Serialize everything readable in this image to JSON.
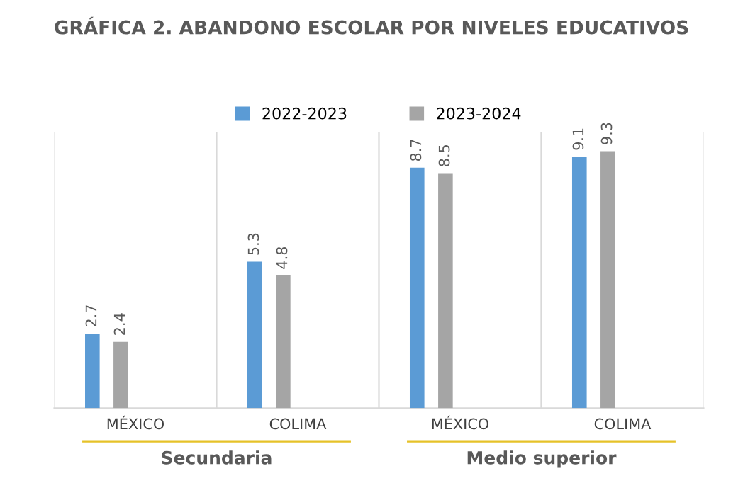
{
  "chart_data": {
    "type": "bar",
    "title": "GRÁFICA 2. ABANDONO ESCOLAR POR NIVELES EDUCATIVOS",
    "categories": [
      "MÉXICO",
      "COLIMA",
      "MÉXICO",
      "COLIMA"
    ],
    "series": [
      {
        "name": "2022-2023",
        "color": "#5b9bd5",
        "values": [
          2.7,
          5.3,
          8.7,
          9.1
        ]
      },
      {
        "name": "2023-2024",
        "color": "#a5a5a5",
        "values": [
          2.4,
          4.8,
          8.5,
          9.3
        ]
      }
    ],
    "annotations": [
      "Secundaria",
      "Medio superior"
    ],
    "data_labels": true,
    "grid": "x",
    "legend": "top"
  }
}
